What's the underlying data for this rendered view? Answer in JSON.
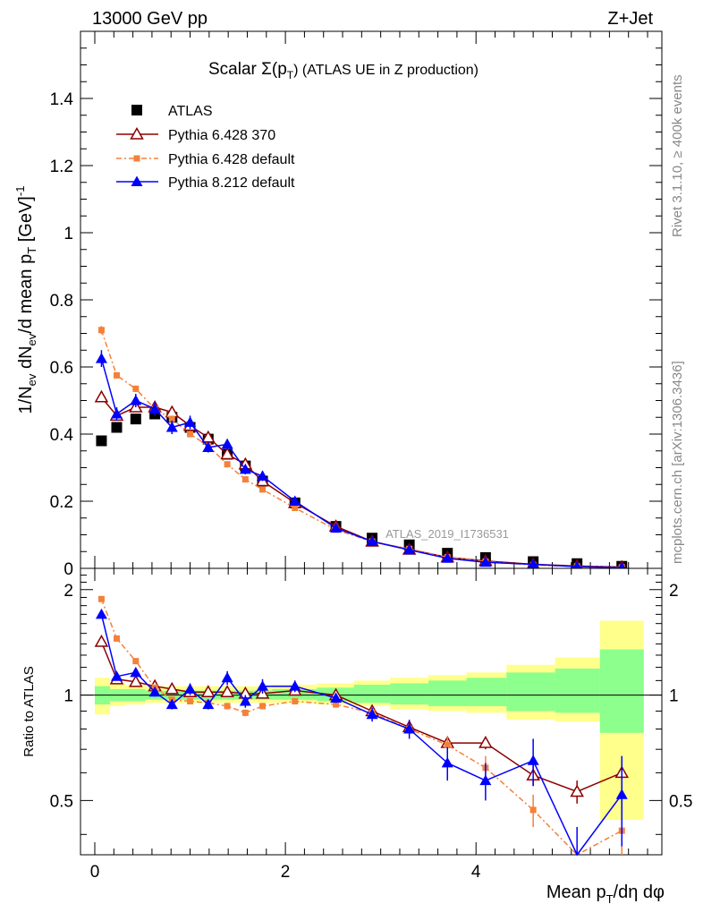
{
  "header": {
    "left": "13000 GeV pp",
    "right": "Z+Jet"
  },
  "title": "Scalar Σ(pT) (ATLAS UE in Z production)",
  "title_parts": {
    "main": "Scalar Σ(p",
    "sub": "T",
    "tail": ") (ATLAS UE in Z production)"
  },
  "right_labels": {
    "rivet": "Rivet 3.1.10, ≥ 400k events",
    "mcplots": "mcplots.cern.ch [arXiv:1306.3436]"
  },
  "watermark": "ATLAS_2019_I1736531",
  "legend": [
    {
      "label": "ATLAS",
      "color": "#000000",
      "marker": "square"
    },
    {
      "label": "Pythia 6.428 370",
      "color": "#8b0000",
      "marker": "open-triangle"
    },
    {
      "label": "Pythia 6.428 default",
      "color": "#f4813a",
      "marker": "small-square"
    },
    {
      "label": "Pythia 8.212 default",
      "color": "#0000ff",
      "marker": "triangle"
    }
  ],
  "chart_data": [
    {
      "type": "line",
      "panel": "main",
      "title": "Scalar Σ(pT) (ATLAS UE in Z production)",
      "xlabel": "Mean pT/dη dφ",
      "ylabel": "1/Nev dNev/d mean pT [GeV]-1",
      "ylabel_parts": {
        "a": "1/N",
        "b": "ev",
        "c": " dN",
        "d": "ev",
        "e": "/d mean p",
        "f": "T",
        "g": " [GeV]",
        "h": "-1"
      },
      "xlim": [
        -0.15,
        5.95
      ],
      "ylim": [
        0,
        1.6
      ],
      "yticks": [
        0,
        0.2,
        0.4,
        0.6,
        0.8,
        1,
        1.2,
        1.4
      ],
      "ytick_labels": [
        "0",
        "0.2",
        "0.4",
        "0.6",
        "0.8",
        "1",
        "1.2",
        "1.4"
      ],
      "x": [
        0.07,
        0.23,
        0.43,
        0.63,
        0.81,
        1.0,
        1.19,
        1.39,
        1.58,
        1.76,
        2.1,
        2.53,
        2.91,
        3.3,
        3.7,
        4.1,
        4.6,
        5.06,
        5.53
      ],
      "series": [
        {
          "name": "ATLAS",
          "values": [
            0.38,
            0.42,
            0.445,
            0.46,
            0.45,
            0.42,
            0.385,
            0.34,
            0.305,
            0.26,
            0.195,
            0.125,
            0.09,
            0.07,
            0.045,
            0.032,
            0.02,
            0.014,
            0.006
          ]
        },
        {
          "name": "Pythia 6.428 370",
          "values": [
            0.51,
            0.455,
            0.48,
            0.48,
            0.465,
            0.425,
            0.39,
            0.34,
            0.31,
            0.26,
            0.195,
            0.125,
            0.08,
            0.056,
            0.033,
            0.022,
            0.012,
            0.007,
            0.004
          ],
          "errors": [
            0.015,
            0.012,
            0.012,
            0.012,
            0.012,
            0.01,
            0.01,
            0.01,
            0.01,
            0.01,
            0.008,
            0.006,
            0.005,
            0.004,
            0.003,
            0.002,
            0.002,
            0.001,
            0.001
          ]
        },
        {
          "name": "Pythia 6.428 default",
          "values": [
            0.71,
            0.575,
            0.535,
            0.475,
            0.445,
            0.4,
            0.365,
            0.31,
            0.265,
            0.235,
            0.18,
            0.115,
            0.08,
            0.058,
            0.033,
            0.02,
            0.01,
            0.006,
            0.003
          ],
          "errors": [
            0.012,
            0.01,
            0.01,
            0.01,
            0.01,
            0.01,
            0.008,
            0.008,
            0.008,
            0.008,
            0.006,
            0.005,
            0.004,
            0.003,
            0.002,
            0.002,
            0.001,
            0.001,
            0.001
          ]
        },
        {
          "name": "Pythia 8.212 default",
          "values": [
            0.625,
            0.46,
            0.5,
            0.475,
            0.42,
            0.435,
            0.36,
            0.37,
            0.295,
            0.275,
            0.2,
            0.12,
            0.08,
            0.055,
            0.03,
            0.018,
            0.012,
            0.005,
            0.002
          ],
          "errors": [
            0.025,
            0.02,
            0.02,
            0.02,
            0.02,
            0.02,
            0.015,
            0.015,
            0.015,
            0.015,
            0.012,
            0.008,
            0.006,
            0.005,
            0.004,
            0.003,
            0.002,
            0.002,
            0.001
          ]
        }
      ]
    },
    {
      "type": "line",
      "panel": "ratio",
      "xlabel": "Mean pT/dη dφ",
      "xlabel_parts": {
        "a": "Mean p",
        "b": "T",
        "c": "/dη dφ"
      },
      "ylabel": "Ratio to ATLAS",
      "xlim": [
        -0.15,
        5.95
      ],
      "ylim": [
        0.35,
        2.3
      ],
      "yticks": [
        0.5,
        1,
        2
      ],
      "ytick_labels": [
        "0.5",
        "1",
        "2"
      ],
      "xticks": [
        0,
        2,
        4
      ],
      "xtick_labels": [
        "0",
        "2",
        "4"
      ],
      "bin_edges": [
        0,
        0.16,
        0.32,
        0.53,
        0.72,
        0.91,
        1.1,
        1.29,
        1.48,
        1.67,
        1.86,
        2.33,
        2.72,
        3.1,
        3.5,
        3.9,
        4.32,
        4.83,
        5.3,
        5.76
      ],
      "band_yellow": [
        [
          0.88,
          1.12
        ],
        [
          0.93,
          1.08
        ],
        [
          0.94,
          1.07
        ],
        [
          0.95,
          1.06
        ],
        [
          0.95,
          1.06
        ],
        [
          0.95,
          1.06
        ],
        [
          0.95,
          1.06
        ],
        [
          0.95,
          1.06
        ],
        [
          0.95,
          1.06
        ],
        [
          0.95,
          1.06
        ],
        [
          0.95,
          1.07
        ],
        [
          0.94,
          1.08
        ],
        [
          0.93,
          1.1
        ],
        [
          0.91,
          1.12
        ],
        [
          0.9,
          1.14
        ],
        [
          0.89,
          1.16
        ],
        [
          0.85,
          1.22
        ],
        [
          0.84,
          1.28
        ],
        [
          0.44,
          1.63
        ]
      ],
      "band_green": [
        [
          0.94,
          1.06
        ],
        [
          0.96,
          1.04
        ],
        [
          0.96,
          1.04
        ],
        [
          0.97,
          1.03
        ],
        [
          0.97,
          1.03
        ],
        [
          0.97,
          1.03
        ],
        [
          0.97,
          1.03
        ],
        [
          0.97,
          1.03
        ],
        [
          0.97,
          1.03
        ],
        [
          0.97,
          1.03
        ],
        [
          0.97,
          1.04
        ],
        [
          0.96,
          1.05
        ],
        [
          0.95,
          1.07
        ],
        [
          0.94,
          1.08
        ],
        [
          0.93,
          1.1
        ],
        [
          0.93,
          1.12
        ],
        [
          0.9,
          1.16
        ],
        [
          0.89,
          1.19
        ],
        [
          0.78,
          1.35
        ]
      ],
      "x": [
        0.07,
        0.23,
        0.43,
        0.63,
        0.81,
        1.0,
        1.19,
        1.39,
        1.58,
        1.76,
        2.1,
        2.53,
        2.91,
        3.3,
        3.7,
        4.1,
        4.6,
        5.06,
        5.53
      ],
      "series": [
        {
          "name": "Pythia 6.428 370",
          "values": [
            1.42,
            1.11,
            1.09,
            1.06,
            1.04,
            1.02,
            1.02,
            1.02,
            1.01,
            1.01,
            1.03,
            1.0,
            0.9,
            0.81,
            0.73,
            0.73,
            0.59,
            0.53,
            0.6
          ],
          "errors": [
            0.02,
            0.02,
            0.02,
            0.02,
            0.02,
            0.02,
            0.02,
            0.02,
            0.02,
            0.02,
            0.02,
            0.02,
            0.03,
            0.03,
            0.03,
            0.03,
            0.04,
            0.04,
            0.06
          ]
        },
        {
          "name": "Pythia 6.428 default",
          "values": [
            1.88,
            1.45,
            1.25,
            1.05,
            0.97,
            0.96,
            0.95,
            0.93,
            0.89,
            0.93,
            0.96,
            0.94,
            0.89,
            0.8,
            0.72,
            0.62,
            0.47,
            0.3,
            0.41
          ],
          "errors": [
            0.02,
            0.02,
            0.02,
            0.02,
            0.02,
            0.02,
            0.02,
            0.02,
            0.02,
            0.02,
            0.02,
            0.02,
            0.03,
            0.03,
            0.04,
            0.05,
            0.05,
            0.05,
            0.1
          ]
        },
        {
          "name": "Pythia 8.212 default",
          "values": [
            1.7,
            1.13,
            1.16,
            1.02,
            0.94,
            1.04,
            0.94,
            1.12,
            0.96,
            1.06,
            1.06,
            0.98,
            0.88,
            0.8,
            0.64,
            0.57,
            0.65,
            0.32,
            0.52
          ],
          "errors": [
            0.04,
            0.03,
            0.03,
            0.03,
            0.03,
            0.04,
            0.03,
            0.05,
            0.04,
            0.05,
            0.04,
            0.03,
            0.04,
            0.05,
            0.07,
            0.07,
            0.1,
            0.1,
            0.15
          ]
        }
      ]
    }
  ]
}
